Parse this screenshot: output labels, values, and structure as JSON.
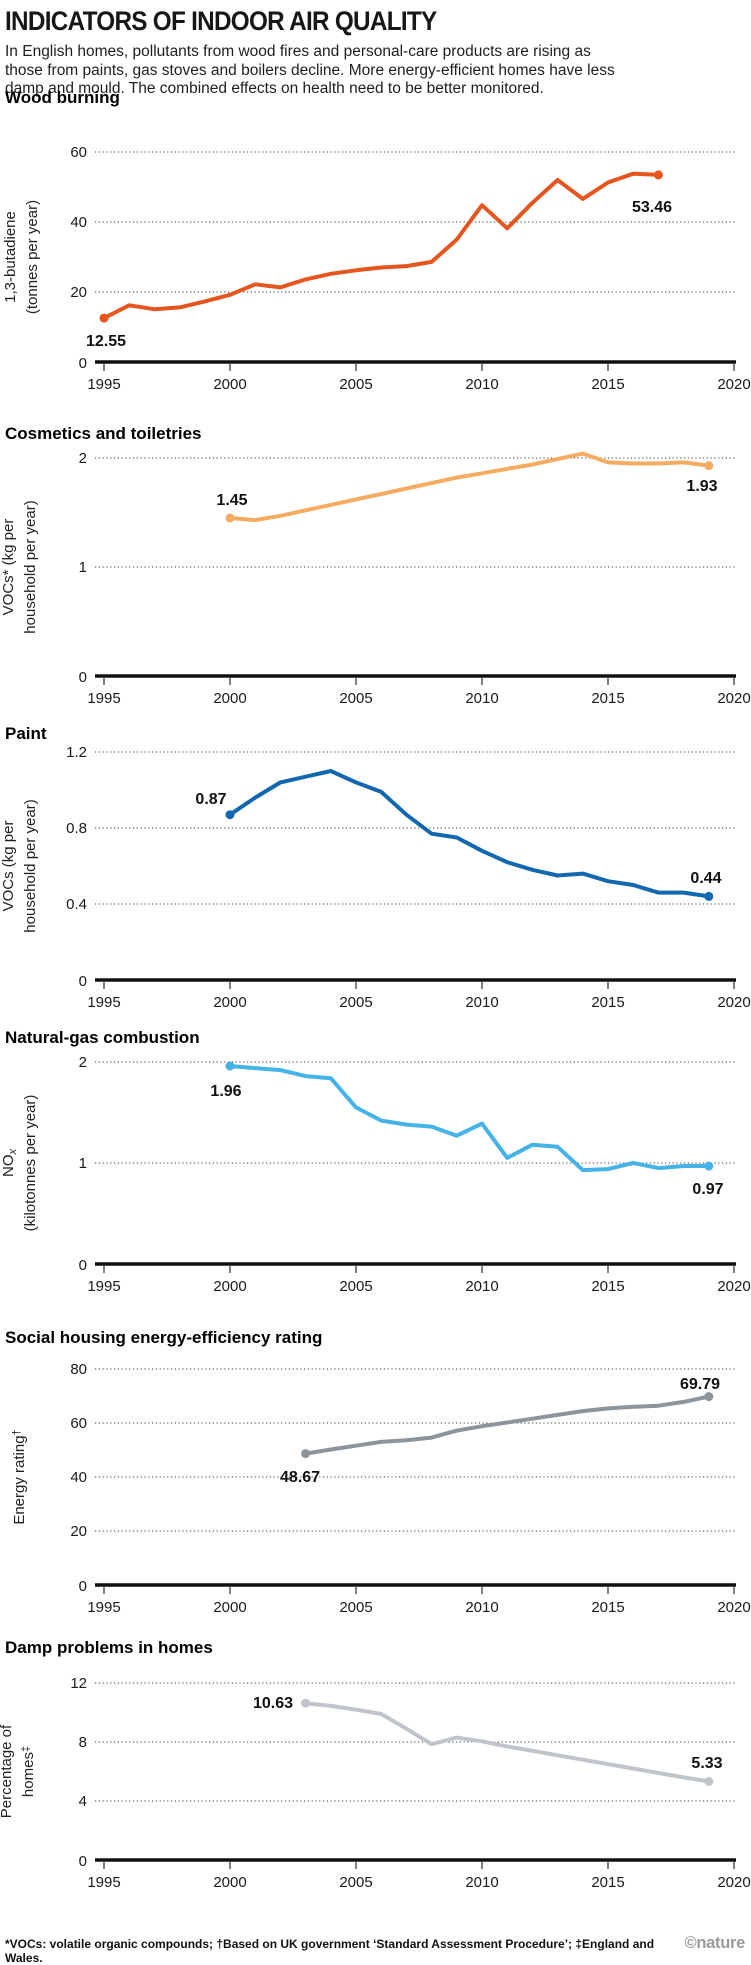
{
  "header": {
    "title": "INDICATORS OF INDOOR AIR QUALITY",
    "intro": "In English homes, pollutants from wood fires and personal-care products are rising as those from paints, gas stoves and boilers decline. More energy-efficient homes have less damp and mould. The combined effects on health need to be better monitored."
  },
  "chart_data": [
    {
      "type": "line",
      "title": "Wood burning",
      "ylabel": "1,3-butadiene (tonnes per year)",
      "ylabel_lines": [
        "1,3-butadiene",
        "(tonnes per year)"
      ],
      "color": "#e6551e",
      "x": [
        1995,
        1996,
        1997,
        1998,
        1999,
        2000,
        2001,
        2002,
        2003,
        2004,
        2005,
        2006,
        2007,
        2008,
        2009,
        2010,
        2011,
        2012,
        2013,
        2014,
        2015,
        2016,
        2017
      ],
      "y": [
        12.55,
        16.2,
        15.1,
        15.6,
        17.3,
        19.2,
        22.2,
        21.3,
        23.6,
        25.2,
        26.2,
        27.0,
        27.4,
        28.6,
        35.0,
        44.8,
        38.2,
        45.5,
        52.0,
        46.6,
        51.3,
        53.8,
        53.46
      ],
      "first_label": "12.55",
      "last_label": "53.46",
      "yticks": [
        0,
        20,
        40,
        60
      ],
      "ylim": [
        0,
        60
      ],
      "xticks": [
        1995,
        2000,
        2005,
        2010,
        2015,
        2020
      ],
      "xlim": [
        1995,
        2020
      ],
      "grid": "dotted-horizontal"
    },
    {
      "type": "line",
      "title": "Cosmetics and toiletries",
      "ylabel": "VOCs* (kg per household per year)",
      "ylabel_lines": [
        "VOCs* (kg per",
        "household per year)"
      ],
      "color": "#f5ac60",
      "x": [
        2000,
        2001,
        2002,
        2003,
        2004,
        2005,
        2006,
        2007,
        2008,
        2009,
        2010,
        2011,
        2012,
        2013,
        2014,
        2015,
        2016,
        2017,
        2018,
        2019
      ],
      "y": [
        1.45,
        1.43,
        1.47,
        1.52,
        1.57,
        1.62,
        1.67,
        1.72,
        1.77,
        1.82,
        1.86,
        1.9,
        1.94,
        1.99,
        2.04,
        1.96,
        1.95,
        1.95,
        1.96,
        1.93
      ],
      "first_label": "1.45",
      "last_label": "1.93",
      "yticks": [
        0,
        1,
        2
      ],
      "ylim": [
        0,
        2
      ],
      "xticks": [
        1995,
        2000,
        2005,
        2010,
        2015,
        2020
      ],
      "xlim": [
        1995,
        2020
      ],
      "grid": "dotted-horizontal"
    },
    {
      "type": "line",
      "title": "Paint",
      "ylabel": "VOCs (kg per household per year)",
      "ylabel_lines": [
        "VOCs (kg per",
        "household per year)"
      ],
      "color": "#1268b0",
      "x": [
        2000,
        2001,
        2002,
        2003,
        2004,
        2005,
        2006,
        2007,
        2008,
        2009,
        2010,
        2011,
        2012,
        2013,
        2014,
        2015,
        2016,
        2017,
        2018,
        2019
      ],
      "y": [
        0.87,
        0.96,
        1.04,
        1.07,
        1.1,
        1.04,
        0.99,
        0.87,
        0.77,
        0.75,
        0.68,
        0.62,
        0.58,
        0.55,
        0.56,
        0.52,
        0.5,
        0.46,
        0.46,
        0.44
      ],
      "first_label": "0.87",
      "last_label": "0.44",
      "yticks": [
        0,
        0.4,
        0.8,
        1.2
      ],
      "ytick_labels": [
        "0",
        "0.4",
        "0.8",
        "1.2"
      ],
      "ylim": [
        0,
        1.2
      ],
      "xticks": [
        1995,
        2000,
        2005,
        2010,
        2015,
        2020
      ],
      "xlim": [
        1995,
        2020
      ],
      "grid": "dotted-horizontal"
    },
    {
      "type": "line",
      "title": "Natural-gas combustion",
      "ylabel": "NOₓ (kilotonnes per year)",
      "ylabel_lines": [
        "NOₓ",
        "(kilotonnes per year)"
      ],
      "color": "#45b2e8",
      "x": [
        2000,
        2001,
        2002,
        2003,
        2004,
        2005,
        2006,
        2007,
        2008,
        2009,
        2010,
        2011,
        2012,
        2013,
        2014,
        2015,
        2016,
        2017,
        2018,
        2019
      ],
      "y": [
        1.96,
        1.94,
        1.92,
        1.86,
        1.84,
        1.55,
        1.42,
        1.38,
        1.36,
        1.27,
        1.39,
        1.05,
        1.18,
        1.16,
        0.93,
        0.94,
        1.0,
        0.95,
        0.97,
        0.97
      ],
      "first_label": "1.96",
      "last_label": "0.97",
      "yticks": [
        0,
        1,
        2
      ],
      "ylim": [
        0,
        2
      ],
      "xticks": [
        1995,
        2000,
        2005,
        2010,
        2015,
        2020
      ],
      "xlim": [
        1995,
        2020
      ],
      "grid": "dotted-horizontal"
    },
    {
      "type": "line",
      "title": "Social housing energy-efficiency rating",
      "ylabel": "Energy rating†",
      "ylabel_lines": [
        "Energy rating†"
      ],
      "color": "#8c949c",
      "x": [
        2003,
        2004,
        2005,
        2006,
        2007,
        2008,
        2009,
        2010,
        2011,
        2012,
        2013,
        2014,
        2015,
        2016,
        2017,
        2018,
        2019
      ],
      "y": [
        48.67,
        50.2,
        51.6,
        53.0,
        53.6,
        54.6,
        57.2,
        58.8,
        60.2,
        61.6,
        63.0,
        64.4,
        65.4,
        66.0,
        66.4,
        67.8,
        69.79
      ],
      "first_label": "48.67",
      "last_label": "69.79",
      "yticks": [
        0,
        20,
        40,
        60,
        80
      ],
      "ylim": [
        0,
        80
      ],
      "xticks": [
        1995,
        2000,
        2005,
        2010,
        2015,
        2020
      ],
      "xlim": [
        1995,
        2020
      ],
      "grid": "dotted-horizontal"
    },
    {
      "type": "line",
      "title": "Damp problems in homes",
      "ylabel": "Percentage of homes‡",
      "ylabel_lines": [
        "Percentage  of",
        "homes‡"
      ],
      "color": "#bfc5ca",
      "x": [
        2003,
        2004,
        2005,
        2006,
        2007,
        2008,
        2009,
        2010,
        2011,
        2012,
        2013,
        2014,
        2015,
        2016,
        2017,
        2018,
        2019
      ],
      "y": [
        10.63,
        10.45,
        10.2,
        9.9,
        8.9,
        7.85,
        8.3,
        8.05,
        7.7,
        7.4,
        7.1,
        6.8,
        6.5,
        6.2,
        5.9,
        5.6,
        5.33
      ],
      "first_label": "10.63",
      "last_label": "5.33",
      "yticks": [
        0,
        4,
        8,
        12
      ],
      "ylim": [
        0,
        12
      ],
      "xticks": [
        1995,
        2000,
        2005,
        2010,
        2015,
        2020
      ],
      "xlim": [
        1995,
        2020
      ],
      "grid": "dotted-horizontal"
    }
  ],
  "footer": {
    "footnote": "*VOCs: volatile organic compounds; †Based on UK government ‘Standard Assessment Procedure’; ‡England and Wales.",
    "credit": "©nature"
  }
}
